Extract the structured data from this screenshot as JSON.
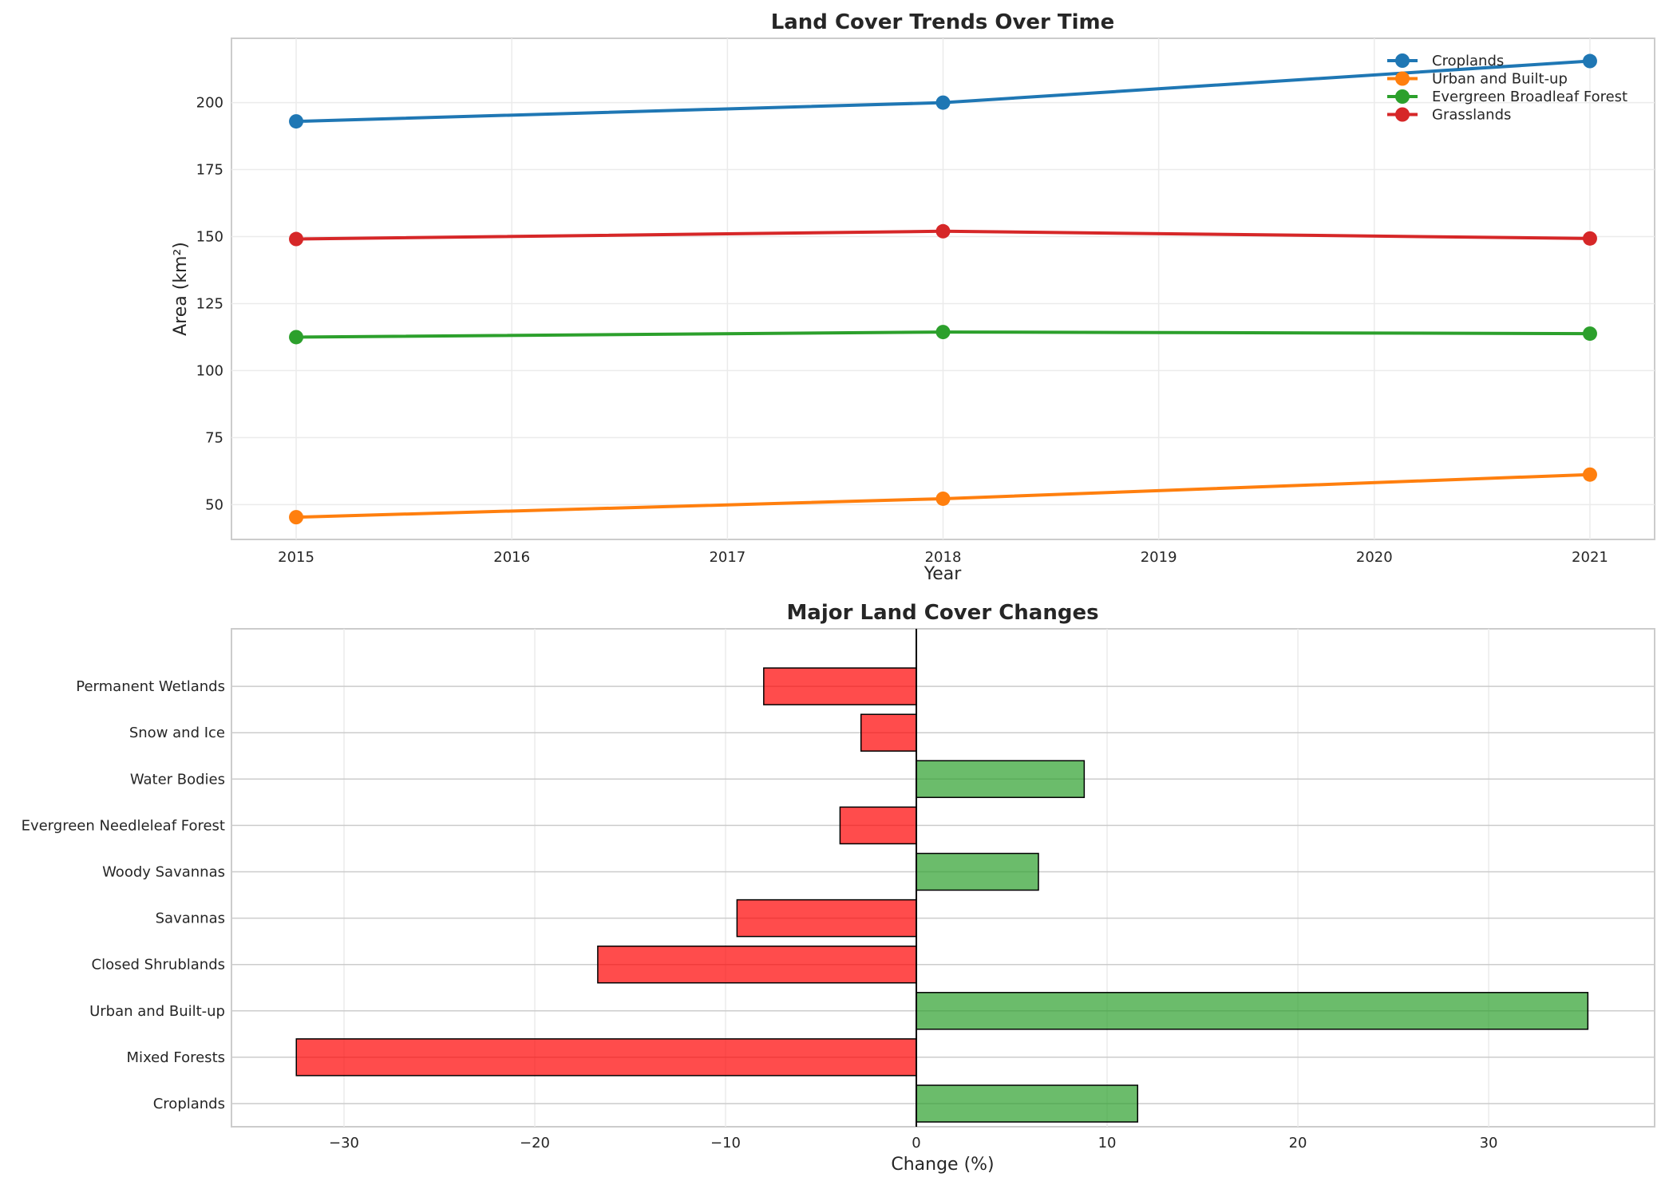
{
  "chart_data": [
    {
      "type": "line",
      "title": "Land Cover Trends Over Time",
      "xlabel": "Year",
      "ylabel": "Area (km²)",
      "x": [
        2015,
        2018,
        2021
      ],
      "xlim": [
        2014.7,
        2021.3
      ],
      "ylim": [
        37,
        224
      ],
      "xticks": [
        "2015",
        "2016",
        "2017",
        "2018",
        "2019",
        "2020",
        "2021"
      ],
      "yticks": [
        "50",
        "75",
        "100",
        "125",
        "150",
        "175",
        "200"
      ],
      "grid": true,
      "legend_position": "top-right",
      "series": [
        {
          "name": "Croplands",
          "color": "#1f77b4",
          "values": [
            193.0,
            200.0,
            215.5
          ]
        },
        {
          "name": "Urban and Built-up",
          "color": "#ff7f0e",
          "values": [
            45.3,
            52.2,
            61.2
          ]
        },
        {
          "name": "Evergreen Broadleaf Forest",
          "color": "#2ca02c",
          "values": [
            112.5,
            114.4,
            113.8
          ]
        },
        {
          "name": "Grasslands",
          "color": "#d62728",
          "values": [
            149.1,
            152.0,
            149.3
          ]
        }
      ]
    },
    {
      "type": "bar",
      "orientation": "horizontal",
      "title": "Major Land Cover Changes",
      "xlabel": "Change (%)",
      "ylabel": "",
      "xlim": [
        -35.9,
        38.7
      ],
      "xticks": [
        "−30",
        "−20",
        "−10",
        "0",
        "10",
        "20",
        "30"
      ],
      "grid": true,
      "positive_color": "#2ca02c",
      "negative_color": "#ff0000",
      "categories": [
        "Croplands",
        "Mixed Forests",
        "Urban and Built-up",
        "Closed Shrublands",
        "Savannas",
        "Woody Savannas",
        "Evergreen Needleleaf Forest",
        "Water Bodies",
        "Snow and Ice",
        "Permanent Wetlands"
      ],
      "values": [
        11.6,
        -32.5,
        35.2,
        -16.7,
        -9.4,
        6.4,
        -4.0,
        8.8,
        -2.9,
        -8.0
      ]
    }
  ]
}
